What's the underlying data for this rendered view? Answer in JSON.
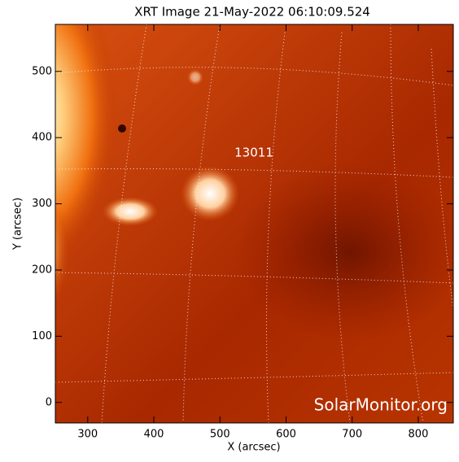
{
  "chart_data": {
    "type": "image",
    "title": "XRT Image 21-May-2022 06:10:09.524",
    "x_label": "X (arcsec)",
    "y_label": "Y (arcsec)",
    "xlim": [
      251,
      853
    ],
    "ylim": [
      -31,
      571
    ],
    "xticks": [
      300,
      400,
      500,
      600,
      700,
      800
    ],
    "yticks": [
      0,
      100,
      200,
      300,
      400,
      500
    ],
    "annotations": [
      "13011"
    ],
    "watermark": "SolarMonitor.org"
  }
}
